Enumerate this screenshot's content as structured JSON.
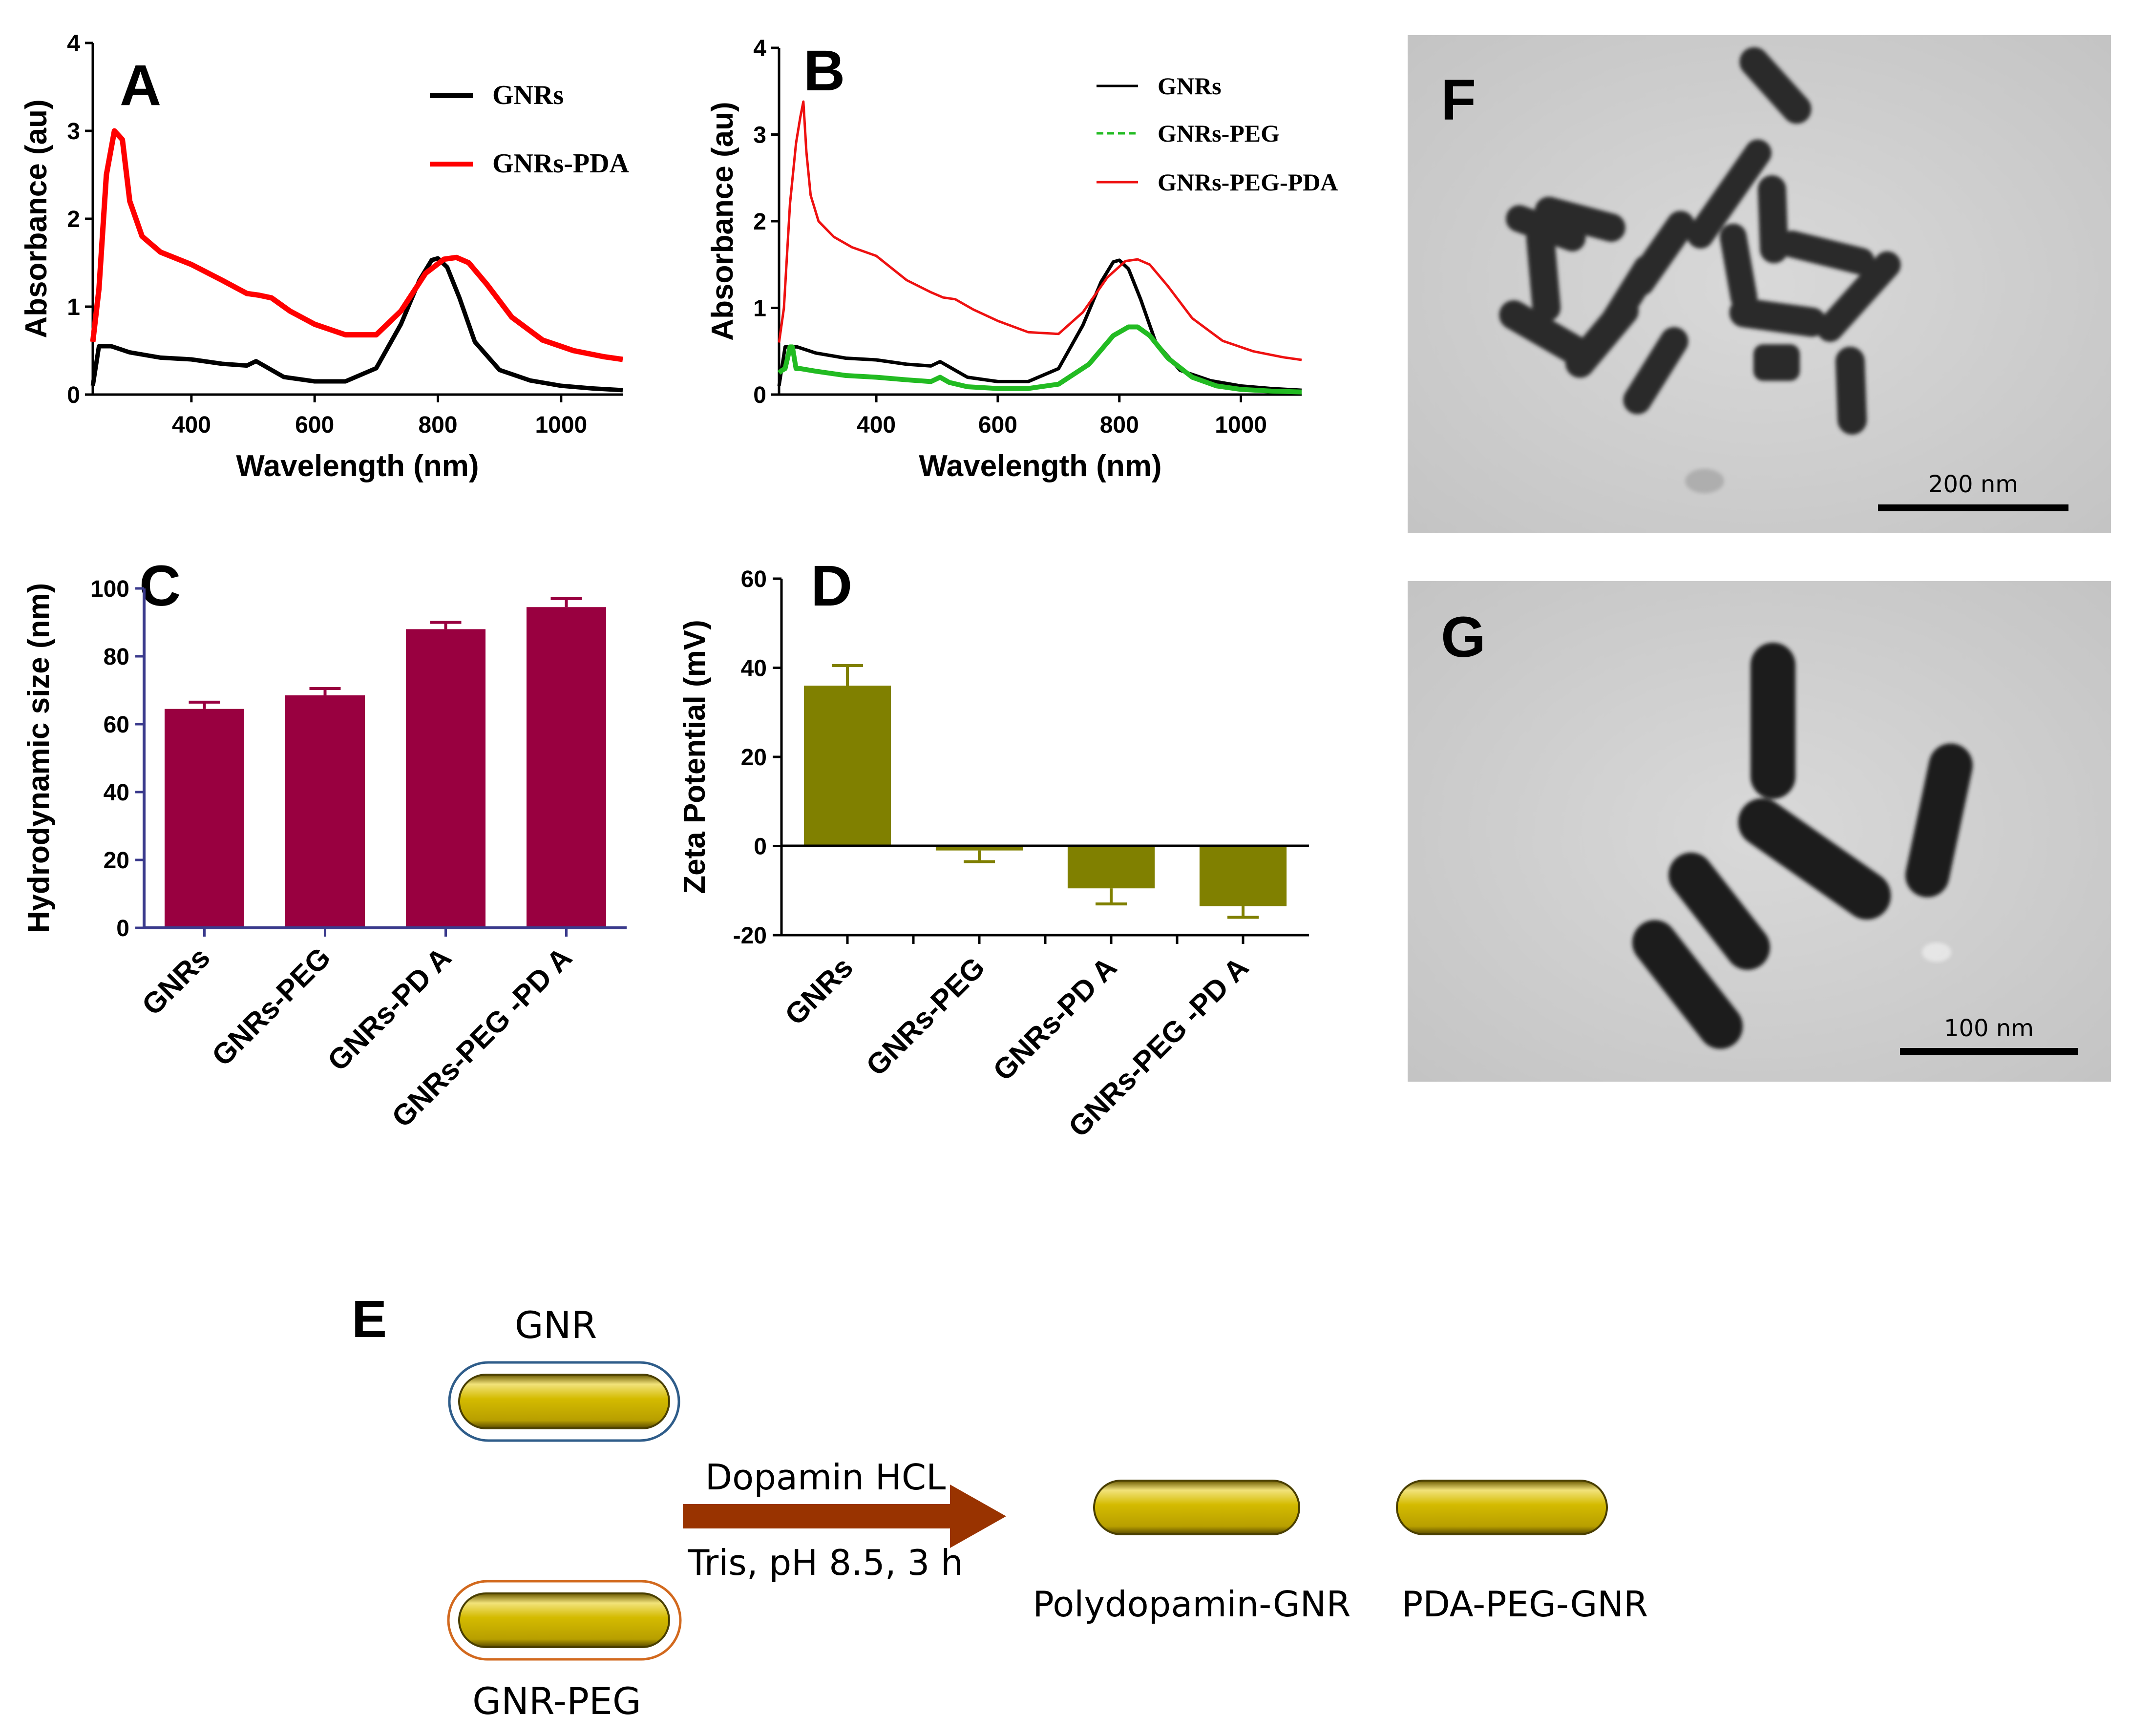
{
  "panel_letters": {
    "a": "A",
    "b": "B",
    "c": "C",
    "d": "D",
    "e": "E",
    "f": "F",
    "g": "G"
  },
  "chart_data": [
    {
      "type": "line",
      "panel": "A",
      "xlabel": "Wavelength (nm)",
      "ylabel": "Absorbance (au)",
      "xlim": [
        240,
        1100
      ],
      "ylim": [
        0,
        4
      ],
      "xticks": [
        400,
        600,
        800,
        1000
      ],
      "yticks": [
        0,
        1,
        2,
        3,
        4
      ],
      "grid": false,
      "legend_position": "top-right",
      "series": [
        {
          "name": "GNRs",
          "color": "#000000",
          "x": [
            240,
            250,
            270,
            300,
            350,
            400,
            450,
            490,
            505,
            520,
            550,
            600,
            650,
            700,
            740,
            770,
            790,
            800,
            815,
            835,
            860,
            900,
            950,
            1000,
            1050,
            1100
          ],
          "y": [
            0.1,
            0.55,
            0.55,
            0.48,
            0.42,
            0.4,
            0.35,
            0.33,
            0.38,
            0.32,
            0.2,
            0.15,
            0.15,
            0.3,
            0.8,
            1.3,
            1.53,
            1.55,
            1.45,
            1.1,
            0.6,
            0.28,
            0.16,
            0.1,
            0.07,
            0.05
          ]
        },
        {
          "name": "GNRs-PDA",
          "color": "#ff0000",
          "x": [
            240,
            250,
            262,
            275,
            288,
            300,
            320,
            350,
            400,
            450,
            490,
            510,
            530,
            560,
            600,
            650,
            700,
            740,
            780,
            810,
            830,
            850,
            880,
            920,
            970,
            1020,
            1070,
            1100
          ],
          "y": [
            0.6,
            1.2,
            2.5,
            3.0,
            2.9,
            2.2,
            1.8,
            1.62,
            1.48,
            1.3,
            1.15,
            1.13,
            1.1,
            0.95,
            0.8,
            0.68,
            0.68,
            0.95,
            1.38,
            1.54,
            1.56,
            1.5,
            1.25,
            0.88,
            0.62,
            0.5,
            0.43,
            0.4
          ]
        }
      ]
    },
    {
      "type": "line",
      "panel": "B",
      "xlabel": "Wavelength (nm)",
      "ylabel": "Absorbance (au)",
      "xlim": [
        240,
        1100
      ],
      "ylim": [
        0,
        4
      ],
      "xticks": [
        400,
        600,
        800,
        1000
      ],
      "yticks": [
        0,
        1,
        2,
        3,
        4
      ],
      "grid": false,
      "legend_position": "top-right",
      "series": [
        {
          "name": "GNRs",
          "color": "#000000",
          "x": [
            240,
            250,
            270,
            300,
            350,
            400,
            450,
            490,
            505,
            520,
            550,
            600,
            650,
            700,
            740,
            770,
            790,
            800,
            815,
            835,
            860,
            900,
            950,
            1000,
            1050,
            1100
          ],
          "y": [
            0.1,
            0.55,
            0.55,
            0.48,
            0.42,
            0.4,
            0.35,
            0.33,
            0.38,
            0.32,
            0.2,
            0.15,
            0.15,
            0.3,
            0.8,
            1.3,
            1.53,
            1.55,
            1.45,
            1.1,
            0.6,
            0.28,
            0.16,
            0.1,
            0.07,
            0.05
          ]
        },
        {
          "name": "GNRs-PEG",
          "color": "#22bb22",
          "x": [
            240,
            245,
            250,
            255,
            258,
            262,
            268,
            275,
            300,
            350,
            400,
            450,
            490,
            505,
            520,
            550,
            600,
            650,
            700,
            750,
            790,
            815,
            830,
            850,
            880,
            920,
            960,
            1000,
            1050,
            1100
          ],
          "y": [
            0.25,
            0.28,
            0.3,
            0.45,
            0.55,
            0.55,
            0.3,
            0.3,
            0.27,
            0.22,
            0.2,
            0.17,
            0.15,
            0.2,
            0.14,
            0.09,
            0.07,
            0.07,
            0.12,
            0.35,
            0.68,
            0.78,
            0.78,
            0.68,
            0.42,
            0.2,
            0.1,
            0.06,
            0.04,
            0.03
          ]
        },
        {
          "name": "GNRs-PEG-PDA",
          "color": "#ee1111",
          "x": [
            240,
            248,
            258,
            268,
            275,
            280,
            285,
            292,
            305,
            330,
            360,
            400,
            450,
            490,
            510,
            530,
            560,
            600,
            650,
            700,
            740,
            780,
            810,
            830,
            850,
            880,
            920,
            970,
            1020,
            1070,
            1100
          ],
          "y": [
            0.6,
            1.0,
            2.2,
            2.9,
            3.2,
            3.38,
            2.8,
            2.3,
            2.0,
            1.82,
            1.7,
            1.6,
            1.32,
            1.18,
            1.12,
            1.1,
            0.98,
            0.85,
            0.72,
            0.7,
            0.95,
            1.35,
            1.54,
            1.56,
            1.5,
            1.25,
            0.88,
            0.62,
            0.5,
            0.43,
            0.4
          ]
        }
      ]
    },
    {
      "type": "bar",
      "panel": "C",
      "categories": [
        "GNRs",
        "GNRs-PEG",
        "GNRs-PD A",
        "GNRs-PEG  -PD A"
      ],
      "values": [
        64.5,
        68.5,
        88,
        94.5
      ],
      "errors": [
        2,
        2,
        2,
        2.5
      ],
      "ylabel": "Hydrodynamic size (nm)",
      "ylim": [
        0,
        100
      ],
      "yticks": [
        0,
        20,
        40,
        60,
        80,
        100
      ],
      "bar_color": "#990040",
      "axis_color": "#3a3a8c"
    },
    {
      "type": "bar",
      "panel": "D",
      "categories": [
        "GNRs",
        "GNRs-PEG",
        "GNRs-PD A",
        "GNRs-PEG  -PD A"
      ],
      "values": [
        36,
        -1,
        -9.5,
        -13.5
      ],
      "errors": [
        4.5,
        2.5,
        3.5,
        2.5
      ],
      "ylabel": "Zeta Potential (mV)",
      "ylim": [
        -20,
        60
      ],
      "yticks": [
        -20,
        0,
        20,
        40,
        60
      ],
      "bar_color": "#808000"
    }
  ],
  "scheme": {
    "gnr_label": "GNR",
    "gnr_peg_label": "GNR-PEG",
    "reagent_label": "Dopamin HCL",
    "conditions_label": "Tris, pH 8.5, 3 h",
    "product1_label": "Polydopamin-GNR",
    "product2_label": "PDA-PEG-GNR",
    "rod_color": "#d4bb00",
    "gnr_shell_color": "#2f5d8a",
    "peg_shell_color": "#d2691e",
    "arrow_color": "#993300"
  },
  "micrographs": {
    "f_scale": "200 nm",
    "g_scale": "100 nm"
  }
}
